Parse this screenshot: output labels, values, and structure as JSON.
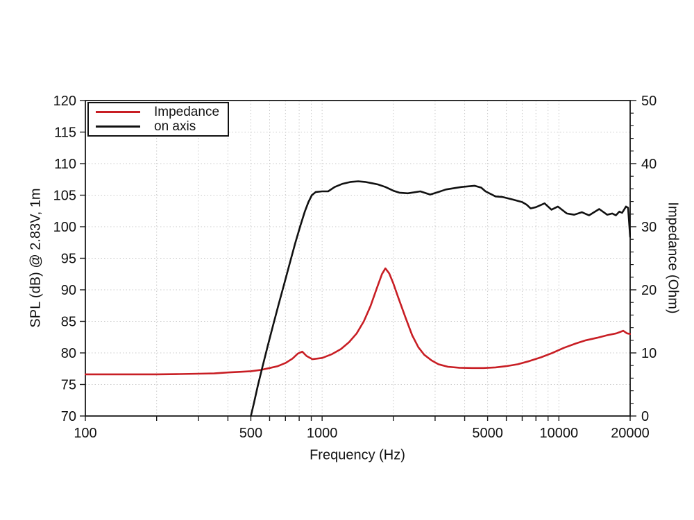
{
  "chart_data": {
    "type": "line",
    "title": "",
    "xlabel": "Frequency (Hz)",
    "ylabel_left": "SPL (dB) @ 2.83V, 1m",
    "ylabel_right": "Impedance (Ohm)",
    "x_scale": "log",
    "x_range": [
      100,
      20000
    ],
    "y_left_range": [
      70,
      120
    ],
    "y_right_range": [
      0,
      50
    ],
    "x_tick_labels": [
      "100",
      "500",
      "1000",
      "5000",
      "10000",
      "20000"
    ],
    "x_tick_label_values": [
      100,
      500,
      1000,
      5000,
      10000,
      20000
    ],
    "x_minor_ticks": [
      100,
      200,
      300,
      400,
      500,
      600,
      700,
      800,
      900,
      1000,
      2000,
      3000,
      4000,
      5000,
      6000,
      7000,
      8000,
      9000,
      10000,
      20000
    ],
    "x_grid_values": [
      200,
      300,
      400,
      500,
      600,
      700,
      800,
      900,
      1000,
      2000,
      3000,
      4000,
      5000,
      6000,
      7000,
      8000,
      9000,
      10000
    ],
    "y_left_tick_labels": [
      "70",
      "75",
      "80",
      "85",
      "90",
      "95",
      "100",
      "105",
      "110",
      "115",
      "120"
    ],
    "y_left_tick_values": [
      70,
      75,
      80,
      85,
      90,
      95,
      100,
      105,
      110,
      115,
      120
    ],
    "y_left_grid_values": [
      75,
      80,
      85,
      90,
      95,
      100,
      105,
      110,
      115
    ],
    "y_right_tick_labels": [
      "0",
      "10",
      "20",
      "30",
      "40",
      "50"
    ],
    "y_right_tick_values": [
      0,
      10,
      20,
      30,
      40,
      50
    ],
    "y_right_minor_ticks": [
      2,
      4,
      6,
      8,
      12,
      14,
      16,
      18,
      22,
      24,
      26,
      28,
      32,
      34,
      36,
      38,
      42,
      44,
      46,
      48
    ],
    "grid": true,
    "colors": {
      "impedance": "#c81e24",
      "on_axis": "#111111",
      "grid": "#c9c9c9",
      "axis": "#1a1a1a",
      "text": "#111111"
    },
    "legend": {
      "position": "top-left",
      "entries": [
        {
          "label": "Impedance",
          "color": "#c81e24"
        },
        {
          "label": "on axis",
          "color": "#111111"
        }
      ]
    },
    "series": [
      {
        "name": "Impedance",
        "axis": "right",
        "unit": "Ohm",
        "color": "#c81e24",
        "points": [
          [
            100,
            6.6
          ],
          [
            150,
            6.6
          ],
          [
            200,
            6.6
          ],
          [
            250,
            6.65
          ],
          [
            300,
            6.7
          ],
          [
            350,
            6.75
          ],
          [
            400,
            6.9
          ],
          [
            450,
            7.0
          ],
          [
            500,
            7.1
          ],
          [
            550,
            7.3
          ],
          [
            600,
            7.6
          ],
          [
            650,
            7.9
          ],
          [
            700,
            8.4
          ],
          [
            750,
            9.1
          ],
          [
            790,
            9.9
          ],
          [
            824,
            10.2
          ],
          [
            860,
            9.5
          ],
          [
            910,
            9.0
          ],
          [
            1000,
            9.2
          ],
          [
            1100,
            9.8
          ],
          [
            1200,
            10.6
          ],
          [
            1300,
            11.7
          ],
          [
            1400,
            13.1
          ],
          [
            1500,
            15.0
          ],
          [
            1600,
            17.4
          ],
          [
            1700,
            20.2
          ],
          [
            1790,
            22.5
          ],
          [
            1850,
            23.4
          ],
          [
            1920,
            22.6
          ],
          [
            2000,
            21.0
          ],
          [
            2100,
            18.7
          ],
          [
            2250,
            15.6
          ],
          [
            2400,
            12.8
          ],
          [
            2550,
            10.9
          ],
          [
            2700,
            9.7
          ],
          [
            2900,
            8.8
          ],
          [
            3100,
            8.2
          ],
          [
            3400,
            7.8
          ],
          [
            3800,
            7.65
          ],
          [
            4300,
            7.6
          ],
          [
            4800,
            7.6
          ],
          [
            5400,
            7.7
          ],
          [
            6000,
            7.9
          ],
          [
            6700,
            8.2
          ],
          [
            7500,
            8.7
          ],
          [
            8400,
            9.3
          ],
          [
            9400,
            10.0
          ],
          [
            10500,
            10.8
          ],
          [
            11800,
            11.5
          ],
          [
            13000,
            12.0
          ],
          [
            14500,
            12.4
          ],
          [
            16000,
            12.8
          ],
          [
            17500,
            13.1
          ],
          [
            18700,
            13.5
          ],
          [
            19400,
            13.1
          ],
          [
            20000,
            13.0
          ]
        ]
      },
      {
        "name": "on axis",
        "axis": "left",
        "unit": "dB",
        "color": "#111111",
        "points": [
          [
            500,
            70
          ],
          [
            515,
            72
          ],
          [
            535,
            74.8
          ],
          [
            560,
            77.8
          ],
          [
            590,
            81.2
          ],
          [
            620,
            84.3
          ],
          [
            655,
            87.7
          ],
          [
            690,
            90.8
          ],
          [
            730,
            94.2
          ],
          [
            770,
            97.4
          ],
          [
            810,
            100.2
          ],
          [
            845,
            102.4
          ],
          [
            875,
            103.9
          ],
          [
            905,
            105.0
          ],
          [
            940,
            105.5
          ],
          [
            1000,
            105.6
          ],
          [
            1060,
            105.6
          ],
          [
            1130,
            106.3
          ],
          [
            1220,
            106.8
          ],
          [
            1320,
            107.1
          ],
          [
            1420,
            107.2
          ],
          [
            1520,
            107.1
          ],
          [
            1620,
            106.9
          ],
          [
            1720,
            106.7
          ],
          [
            1850,
            106.3
          ],
          [
            2000,
            105.7
          ],
          [
            2120,
            105.4
          ],
          [
            2300,
            105.3
          ],
          [
            2600,
            105.6
          ],
          [
            2860,
            105.1
          ],
          [
            3100,
            105.5
          ],
          [
            3330,
            105.9
          ],
          [
            3880,
            106.3
          ],
          [
            4400,
            106.5
          ],
          [
            4700,
            106.2
          ],
          [
            4900,
            105.6
          ],
          [
            5400,
            104.8
          ],
          [
            5800,
            104.7
          ],
          [
            6400,
            104.3
          ],
          [
            7000,
            103.9
          ],
          [
            7300,
            103.5
          ],
          [
            7600,
            102.9
          ],
          [
            8000,
            103.1
          ],
          [
            8700,
            103.7
          ],
          [
            9300,
            102.7
          ],
          [
            9900,
            103.2
          ],
          [
            10800,
            102.1
          ],
          [
            11600,
            101.9
          ],
          [
            12500,
            102.3
          ],
          [
            13400,
            101.8
          ],
          [
            14800,
            102.8
          ],
          [
            16000,
            101.9
          ],
          [
            16800,
            102.1
          ],
          [
            17400,
            101.8
          ],
          [
            18000,
            102.4
          ],
          [
            18500,
            102.2
          ],
          [
            19200,
            103.2
          ],
          [
            19600,
            103.0
          ],
          [
            20000,
            98.4
          ]
        ]
      }
    ]
  }
}
